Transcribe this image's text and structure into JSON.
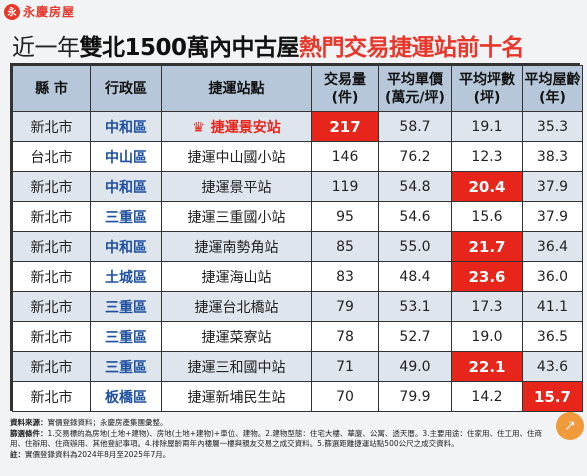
{
  "brand": {
    "logo_text": "永",
    "name": "永慶房屋"
  },
  "title": {
    "part1": "近一年",
    "part2": "雙北1500萬內中古屋",
    "part3": "熱門交易捷運站前十名"
  },
  "table": {
    "headers": [
      "縣 市",
      "行政區",
      "捷運站點",
      "交易量\n(件)",
      "平均單價\n(萬元/坪)",
      "平均坪數\n(坪)",
      "平均屋齡\n(年)"
    ],
    "rows": [
      {
        "city": "新北市",
        "district": "中和區",
        "station": "捷運景安站",
        "volume": "217",
        "unit_price": "58.7",
        "area": "19.1",
        "age": "35.3"
      },
      {
        "city": "台北市",
        "district": "中山區",
        "station": "捷運中山國小站",
        "volume": "146",
        "unit_price": "76.2",
        "area": "12.3",
        "age": "38.3"
      },
      {
        "city": "新北市",
        "district": "中和區",
        "station": "捷運景平站",
        "volume": "119",
        "unit_price": "54.8",
        "area": "20.4",
        "age": "37.9"
      },
      {
        "city": "新北市",
        "district": "三重區",
        "station": "捷運三重國小站",
        "volume": "95",
        "unit_price": "54.6",
        "area": "15.6",
        "age": "37.9"
      },
      {
        "city": "新北市",
        "district": "中和區",
        "station": "捷運南勢角站",
        "volume": "85",
        "unit_price": "55.0",
        "area": "21.7",
        "age": "36.4"
      },
      {
        "city": "新北市",
        "district": "土城區",
        "station": "捷運海山站",
        "volume": "83",
        "unit_price": "48.4",
        "area": "23.6",
        "age": "36.0"
      },
      {
        "city": "新北市",
        "district": "三重區",
        "station": "捷運台北橋站",
        "volume": "79",
        "unit_price": "53.1",
        "area": "17.3",
        "age": "41.1"
      },
      {
        "city": "新北市",
        "district": "三重區",
        "station": "捷運菜寮站",
        "volume": "78",
        "unit_price": "52.7",
        "area": "19.0",
        "age": "36.5"
      },
      {
        "city": "新北市",
        "district": "三重區",
        "station": "捷運三和國中站",
        "volume": "71",
        "unit_price": "49.0",
        "area": "22.1",
        "age": "43.6"
      },
      {
        "city": "新北市",
        "district": "板橋區",
        "station": "捷運新埔民生站",
        "volume": "70",
        "unit_price": "79.9",
        "area": "14.2",
        "age": "15.7"
      }
    ]
  },
  "notes": {
    "source_label": "資料來源：",
    "source_text": "實價登錄資料；永慶房產集團彙整。",
    "criteria_label": "篩選條件：",
    "criteria_text": "1.交易標的為房地(土地+建物)、房地(土地+建物)+車位、建物。2.建物型態：住宅大樓、華廈、公寓、透天厝。3.主要用途：住家用、住工用、住商用、住辦用、住商辦用、其他登記事項。4.排除屋齡兩年內樓層一樓與親友交易之成交資料。5.篩選距離捷運站點500公尺之成交資料。",
    "note_label": "註：",
    "note_text": "實價登錄資料為2024年8月至2025年7月。"
  },
  "colors": {
    "brand_red": "#e8362a",
    "header_blue": "#b5c7d9",
    "district_blue": "#1e50a0",
    "highlight_red": "#e8251a"
  }
}
